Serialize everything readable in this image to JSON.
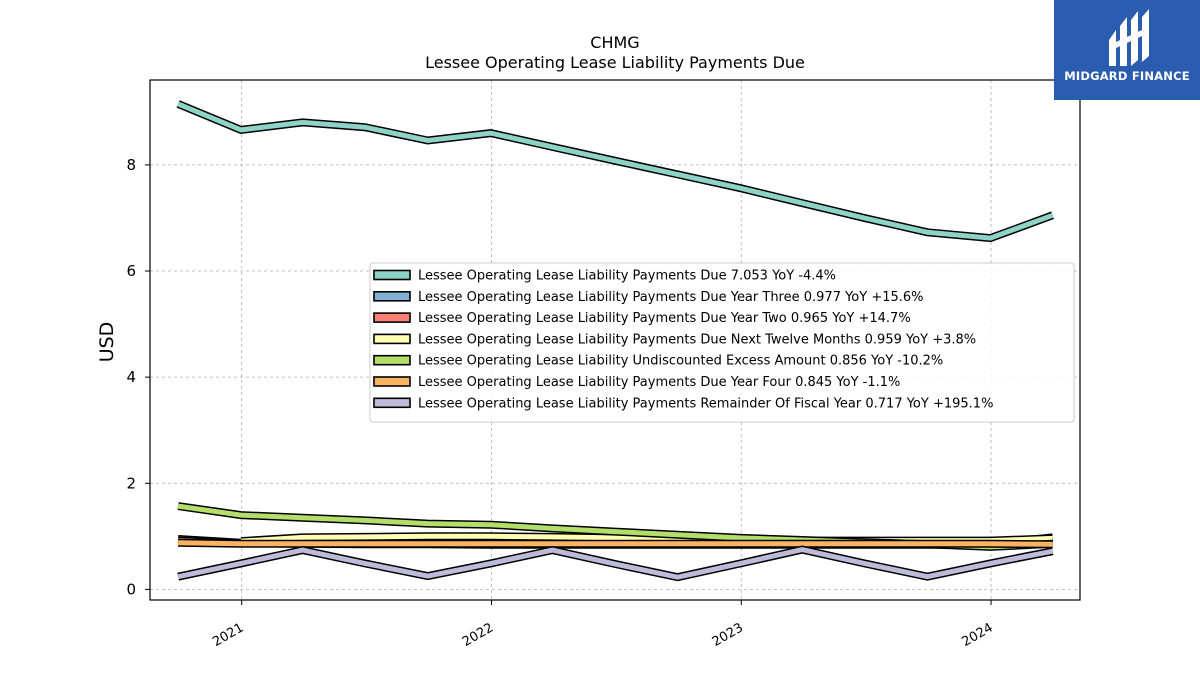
{
  "brand": {
    "name": "MIDGARD FINANCE",
    "bg_color": "#2a5db0"
  },
  "chart_data": {
    "type": "line",
    "title": "CHMG",
    "subtitle": "Lessee Operating Lease Liability Payments Due",
    "ylabel": "USD",
    "xlabel": "",
    "x": [
      "2020-09-30",
      "2020-12-31",
      "2021-03-31",
      "2021-06-30",
      "2021-09-30",
      "2021-12-31",
      "2022-03-31",
      "2022-06-30",
      "2022-09-30",
      "2022-12-31",
      "2023-03-31",
      "2023-06-30",
      "2023-09-30",
      "2023-12-31",
      "2024-03-31"
    ],
    "xlim": [
      "2020-08-20",
      "2024-05-10"
    ],
    "ylim": [
      -0.2,
      9.6
    ],
    "x_ticks": [
      {
        "date": "2021-01-01",
        "label": "2021"
      },
      {
        "date": "2022-01-01",
        "label": "2022"
      },
      {
        "date": "2023-01-01",
        "label": "2023"
      },
      {
        "date": "2024-01-01",
        "label": "2024"
      }
    ],
    "y_ticks": [
      0,
      2,
      4,
      6,
      8
    ],
    "grid": true,
    "legend_position": "center-right",
    "series": [
      {
        "name": "Lessee Operating Lease Liability Payments Due",
        "legend": "Lessee Operating Lease Liability Payments Due  7.053 YoY -4.4%",
        "color": "#8dd3c7",
        "values": [
          9.15,
          8.66,
          8.8,
          8.71,
          8.46,
          8.6,
          8.34,
          8.08,
          7.82,
          7.56,
          7.28,
          7.0,
          6.73,
          6.62,
          7.05
        ]
      },
      {
        "name": "Lessee Operating Lease Liability Payments Due Year Three",
        "legend": "Lessee Operating Lease Liability Payments Due Year Three  0.977 YoY +15.6%",
        "color": "#80b1d3",
        "values": [
          0.95,
          0.88,
          0.87,
          0.86,
          0.86,
          0.85,
          0.85,
          0.85,
          0.85,
          0.85,
          0.85,
          0.85,
          0.85,
          0.85,
          0.98
        ]
      },
      {
        "name": "Lessee Operating Lease Liability Payments Due Year Two",
        "legend": "Lessee Operating Lease Liability Payments Due Year Two  0.965 YoY +14.7%",
        "color": "#fb8072",
        "values": [
          0.92,
          0.87,
          0.86,
          0.85,
          0.85,
          0.84,
          0.84,
          0.84,
          0.84,
          0.84,
          0.84,
          0.84,
          0.84,
          0.84,
          0.97
        ]
      },
      {
        "name": "Lessee Operating Lease Liability Payments Due Next Twelve Months",
        "legend": "Lessee Operating Lease Liability Payments Due Next Twelve Months  0.959 YoY +3.8%",
        "color": "#ffffb3",
        "values": [
          null,
          0.91,
          0.98,
          0.99,
          1.0,
          1.0,
          0.99,
          0.97,
          0.95,
          0.93,
          0.92,
          0.92,
          0.92,
          0.92,
          0.96
        ]
      },
      {
        "name": "Lessee Operating Lease Liability Undiscounted Excess Amount",
        "legend": "Lessee Operating Lease Liability Undiscounted Excess Amount  0.856 YoY -10.2%",
        "color": "#b3de69",
        "values": [
          1.57,
          1.4,
          1.35,
          1.3,
          1.24,
          1.22,
          1.15,
          1.09,
          1.03,
          0.97,
          0.93,
          0.89,
          0.85,
          0.8,
          0.86
        ]
      },
      {
        "name": "Lessee Operating Lease Liability Payments Due Year Four",
        "legend": "Lessee Operating Lease Liability Payments Due Year Four  0.845 YoY -1.1%",
        "color": "#fdb462",
        "values": [
          0.88,
          0.86,
          0.86,
          0.86,
          0.86,
          0.86,
          0.86,
          0.86,
          0.86,
          0.86,
          0.86,
          0.86,
          0.86,
          0.86,
          0.85
        ]
      },
      {
        "name": "Lessee Operating Lease Liability Payments Remainder Of Fiscal Year",
        "legend": "Lessee Operating Lease Liability Payments Remainder Of Fiscal Year  0.717 YoY +195.1%",
        "color": "#bebada",
        "values": [
          0.24,
          0.49,
          0.74,
          0.49,
          0.25,
          0.49,
          0.74,
          0.48,
          0.23,
          0.49,
          0.75,
          0.49,
          0.24,
          0.49,
          0.72
        ]
      }
    ]
  }
}
